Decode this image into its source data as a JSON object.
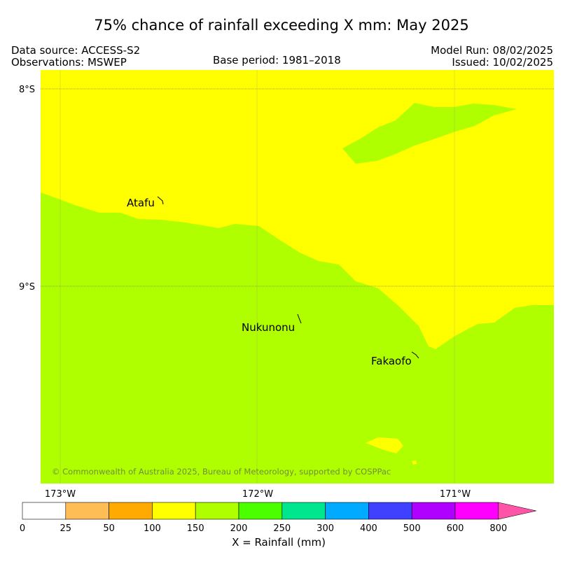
{
  "title": "75% chance of rainfall exceeding X mm: May 2025",
  "header": {
    "data_source": "Data source: ACCESS-S2",
    "observations": "Observations: MSWEP",
    "base_period": "Base period: 1981–2018",
    "model_run": "Model Run: 08/02/2025",
    "issued": "Issued: 10/02/2025"
  },
  "map": {
    "lat_labels": [
      "8°S",
      "9°S"
    ],
    "lon_labels": [
      "173°W",
      "172°W",
      "171°W"
    ],
    "places": [
      "Atafu",
      "Nukunonu",
      "Fakaofo"
    ],
    "copyright": "© Commonwealth of Australia 2025, Bureau of Meteorology, supported by COSPPac",
    "fill_colors": {
      "yellow": "#ffff00",
      "green": "#b0ff00"
    }
  },
  "colorbar": {
    "label": "X = Rainfall (mm)",
    "ticks": [
      "0",
      "25",
      "50",
      "100",
      "150",
      "200",
      "250",
      "300",
      "400",
      "500",
      "600",
      "800"
    ],
    "colors": [
      "#ffffff",
      "#ffbe55",
      "#ffaa00",
      "#ffff00",
      "#b0ff00",
      "#4cff00",
      "#00e68f",
      "#00aaff",
      "#4040ff",
      "#b000ff",
      "#ff00ff"
    ],
    "extend_color": "#ff55a8"
  }
}
